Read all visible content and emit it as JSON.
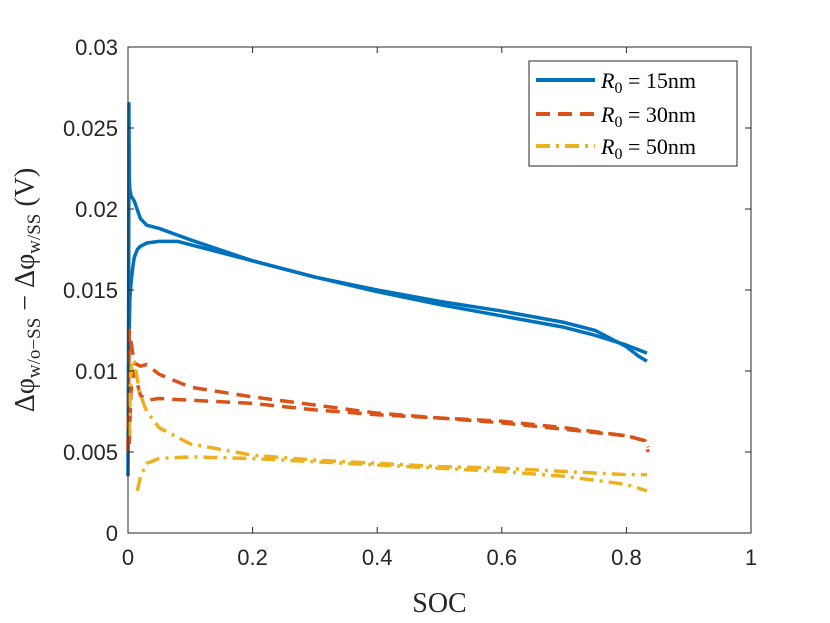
{
  "chart_data": {
    "type": "line",
    "title": "",
    "xlabel": "SOC",
    "ylabel": "Δφw/o−SS − Δφw/SS (V)",
    "ylabel_parts": {
      "main1": "Δφ",
      "sub1": "w/o−SS",
      "minus": " − ",
      "main2": "Δφ",
      "sub2": "w/SS",
      "unit": " (V)"
    },
    "xlim": [
      0,
      1
    ],
    "ylim": [
      0,
      0.03
    ],
    "xticks": [
      0,
      0.2,
      0.4,
      0.6,
      0.8,
      1
    ],
    "xtick_labels": [
      "0",
      "0.2",
      "0.4",
      "0.6",
      "0.8",
      "1"
    ],
    "yticks": [
      0,
      0.005,
      0.01,
      0.015,
      0.02,
      0.025,
      0.03
    ],
    "ytick_labels": [
      "0",
      "0.005",
      "0.01",
      "0.015",
      "0.02",
      "0.025",
      "0.03"
    ],
    "grid": false,
    "legend_position": "top-right",
    "series": [
      {
        "name": "R0 = 15nm",
        "legend": {
          "var": "R",
          "sub": "0",
          "rest": " = 15nm"
        },
        "color": "#0072BD",
        "style": "solid",
        "branches": [
          {
            "x": [
              0,
              0.0005,
              0.001,
              0.0015,
              0.002,
              0.003,
              0.005,
              0.01,
              0.02,
              0.03,
              0.05,
              0.1,
              0.2,
              0.3,
              0.4,
              0.5,
              0.6,
              0.7,
              0.75,
              0.8,
              0.82,
              0.833
            ],
            "y": [
              0.0035,
              0.008,
              0.0135,
              0.0265,
              0.022,
              0.0212,
              0.0208,
              0.0205,
              0.0194,
              0.019,
              0.0188,
              0.0181,
              0.0168,
              0.0158,
              0.0149,
              0.0141,
              0.0134,
              0.0127,
              0.0122,
              0.0116,
              0.0113,
              0.0111
            ]
          },
          {
            "x": [
              0.0015,
              0.003,
              0.005,
              0.008,
              0.01,
              0.015,
              0.02,
              0.03,
              0.05,
              0.08,
              0.1,
              0.2,
              0.3,
              0.4,
              0.5,
              0.6,
              0.7,
              0.75,
              0.8,
              0.82,
              0.833
            ],
            "y": [
              0.0115,
              0.0145,
              0.0155,
              0.0165,
              0.017,
              0.0175,
              0.0177,
              0.0179,
              0.018,
              0.018,
              0.0178,
              0.0168,
              0.0158,
              0.015,
              0.0143,
              0.0137,
              0.013,
              0.0125,
              0.0115,
              0.0109,
              0.0106
            ]
          }
        ]
      },
      {
        "name": "R0 = 30nm",
        "legend": {
          "var": "R",
          "sub": "0",
          "rest": " = 30nm"
        },
        "color": "#D95319",
        "style": "dashed",
        "branches": [
          {
            "x": [
              0,
              0.001,
              0.002,
              0.004,
              0.006,
              0.01,
              0.02,
              0.03,
              0.05,
              0.1,
              0.2,
              0.3,
              0.4,
              0.5,
              0.6,
              0.7,
              0.8,
              0.83,
              0.835
            ],
            "y": [
              0.005,
              0.009,
              0.0125,
              0.012,
              0.0115,
              0.0105,
              0.0103,
              0.0104,
              0.0098,
              0.009,
              0.0084,
              0.0079,
              0.0074,
              0.0071,
              0.0069,
              0.0065,
              0.006,
              0.0057,
              0.0053
            ]
          },
          {
            "x": [
              0.002,
              0.004,
              0.006,
              0.01,
              0.015,
              0.02,
              0.03,
              0.05,
              0.1,
              0.2,
              0.3,
              0.4,
              0.5,
              0.6,
              0.7,
              0.8,
              0.83,
              0.835
            ],
            "y": [
              0.0055,
              0.008,
              0.0095,
              0.01,
              0.0092,
              0.0085,
              0.0082,
              0.0083,
              0.0082,
              0.008,
              0.0076,
              0.0073,
              0.0071,
              0.0068,
              0.0064,
              0.006,
              0.0057,
              0.005
            ]
          }
        ]
      },
      {
        "name": "R0 = 50nm",
        "legend": {
          "var": "R",
          "sub": "0",
          "rest": " = 50nm"
        },
        "color": "#EDB120",
        "style": "dashdot",
        "branches": [
          {
            "x": [
              0.002,
              0.004,
              0.006,
              0.008,
              0.01,
              0.015,
              0.02,
              0.03,
              0.05,
              0.1,
              0.2,
              0.3,
              0.4,
              0.5,
              0.6,
              0.7,
              0.8,
              0.833
            ],
            "y": [
              0.006,
              0.0095,
              0.0105,
              0.0107,
              0.0106,
              0.0095,
              0.0085,
              0.0075,
              0.0065,
              0.0055,
              0.0048,
              0.0045,
              0.0043,
              0.0041,
              0.004,
              0.0038,
              0.0036,
              0.0036
            ]
          },
          {
            "x": [
              0.015,
              0.02,
              0.03,
              0.05,
              0.1,
              0.2,
              0.3,
              0.4,
              0.5,
              0.6,
              0.7,
              0.8,
              0.833
            ],
            "y": [
              0.0026,
              0.0035,
              0.0043,
              0.0046,
              0.0047,
              0.0046,
              0.0044,
              0.0042,
              0.004,
              0.0038,
              0.0035,
              0.003,
              0.0026
            ]
          }
        ]
      }
    ]
  }
}
